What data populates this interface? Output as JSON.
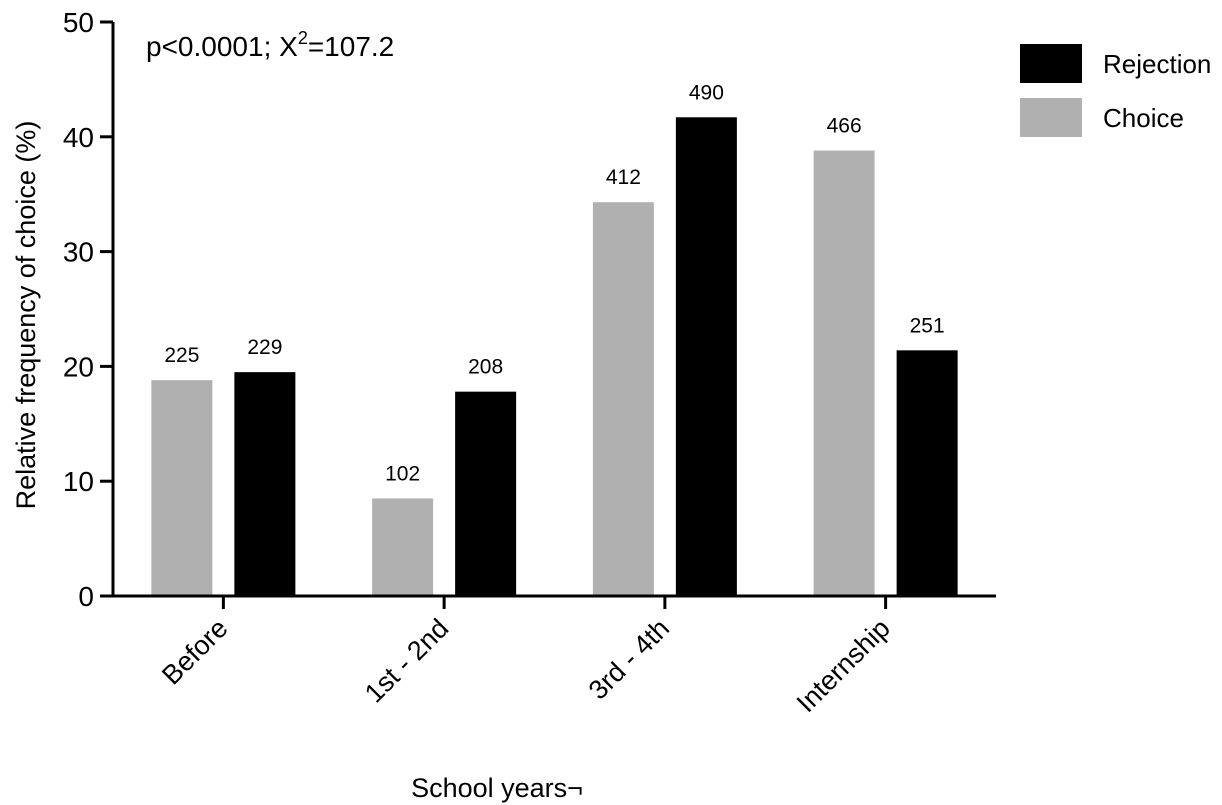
{
  "chart_data": {
    "type": "bar",
    "title": "",
    "annotation": {
      "text_before": "p<0.0001; X",
      "superscript": "2",
      "text_after": "=107.2"
    },
    "xlabel": "School years¬",
    "ylabel": "Relative frequency of choice (%)",
    "ylim": [
      0,
      50
    ],
    "yticks": [
      "0",
      "10",
      "20",
      "30",
      "40",
      "50"
    ],
    "categories": [
      "Before",
      "1st - 2nd",
      "3rd - 4th",
      "Internship"
    ],
    "series": [
      {
        "name": "Choice",
        "color": "#b0b0b1",
        "values": [
          18.8,
          8.5,
          34.3,
          38.8
        ],
        "labels": [
          "225",
          "102",
          "412",
          "466"
        ]
      },
      {
        "name": "Rejection",
        "color": "#000000",
        "values": [
          19.5,
          17.8,
          41.7,
          21.4
        ],
        "labels": [
          "229",
          "208",
          "490",
          "251"
        ]
      }
    ],
    "legend": {
      "placement": "top-right",
      "order": [
        "Rejection",
        "Choice"
      ]
    },
    "grid": false
  }
}
